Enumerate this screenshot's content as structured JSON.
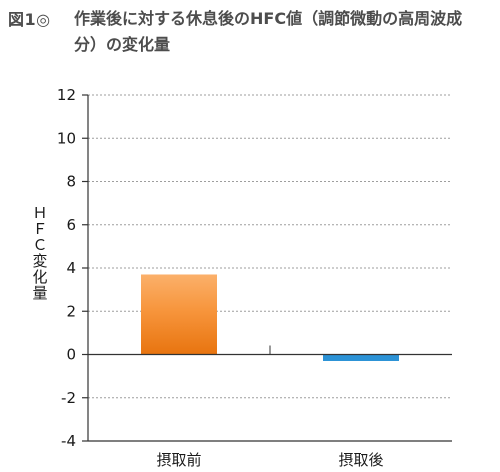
{
  "figure": {
    "label": "図1◎",
    "title": "作業後に対する休息後のHFC値（調節微動の高周波成分）の変化量"
  },
  "chart_data": {
    "type": "bar",
    "title": "作業後に対する休息後のHFC値（調節微動の高周波成分）の変化量",
    "xlabel": "",
    "ylabel": "ＨＦＣ変化量",
    "categories": [
      "摂取前",
      "摂取後"
    ],
    "values": [
      3.7,
      -0.3
    ],
    "ylim": [
      -4,
      12
    ],
    "yticks": [
      12,
      10,
      8,
      6,
      4,
      2,
      0,
      -2,
      -4
    ],
    "grid": true,
    "legend": "none",
    "colors": {
      "bar_before_top": "#fbb06a",
      "bar_before_bottom": "#e8740f",
      "bar_after": "#2b92d6",
      "grid": "#9e9e9e",
      "axis": "#333333"
    }
  }
}
